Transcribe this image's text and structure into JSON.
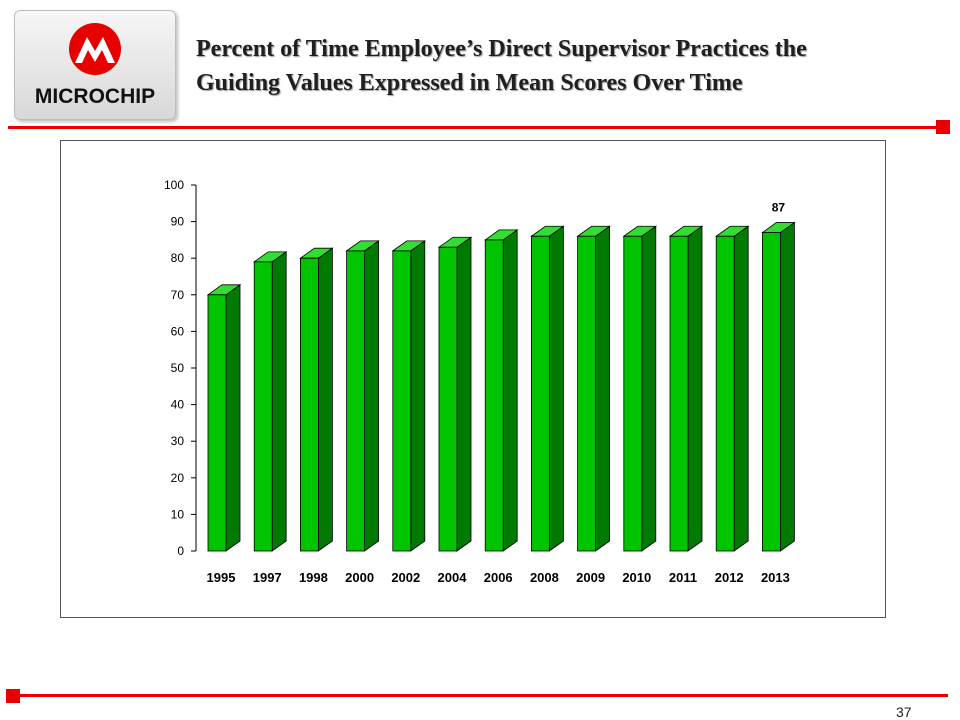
{
  "brand": {
    "logo_text": "MICROCHIP",
    "accent_color": "#e60000"
  },
  "header": {
    "title_line1": "Percent of Time Employee’s Direct Supervisor Practices the",
    "title_line2": "Guiding Values Expressed in Mean Scores Over Time"
  },
  "footer": {
    "page_number": "37"
  },
  "chart_data": {
    "type": "bar",
    "style": "3d-column",
    "categories": [
      "1995",
      "1997",
      "1998",
      "2000",
      "2002",
      "2004",
      "2006",
      "2008",
      "2009",
      "2010",
      "2011",
      "2012",
      "2013"
    ],
    "series": [
      {
        "values": [
          70,
          79,
          80,
          82,
          82,
          83,
          85,
          86,
          86,
          86,
          86,
          86,
          87
        ]
      }
    ],
    "data_labels": [
      {
        "category": "2013",
        "text": "87"
      }
    ],
    "ylim": [
      0,
      100
    ],
    "yticks": [
      0,
      10,
      20,
      30,
      40,
      50,
      60,
      70,
      80,
      90,
      100
    ],
    "grid": false,
    "legend": "none",
    "colors": {
      "front": "#00c400",
      "side": "#007a00",
      "top": "#33dd33",
      "outline": "#000000"
    }
  }
}
